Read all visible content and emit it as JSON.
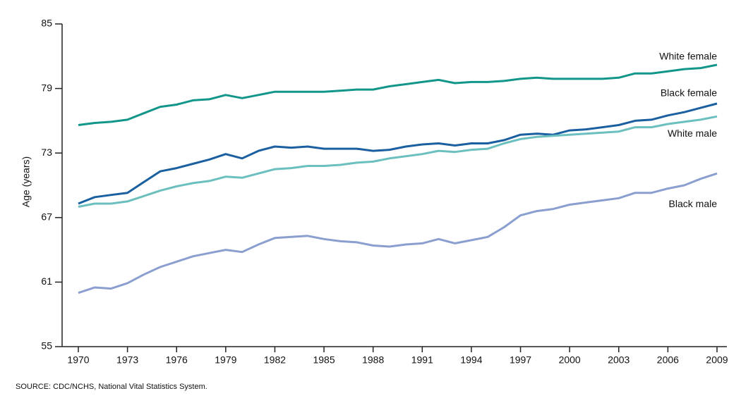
{
  "chart_data": {
    "type": "line",
    "y_label": "Age (years)",
    "source": "SOURCE: CDC/NCHS, National Vital Statistics System.",
    "x": [
      1970,
      1971,
      1972,
      1973,
      1974,
      1975,
      1976,
      1977,
      1978,
      1979,
      1980,
      1981,
      1982,
      1983,
      1984,
      1985,
      1986,
      1987,
      1988,
      1989,
      1990,
      1991,
      1992,
      1993,
      1994,
      1995,
      1996,
      1997,
      1998,
      1999,
      2000,
      2001,
      2002,
      2003,
      2004,
      2005,
      2006,
      2007,
      2008,
      2009
    ],
    "xlim": [
      1970,
      2009
    ],
    "xticks": [
      1970,
      1973,
      1976,
      1979,
      1982,
      1985,
      1988,
      1991,
      1994,
      1997,
      2000,
      2003,
      2006,
      2009
    ],
    "ylim": [
      55,
      85
    ],
    "yticks": [
      55,
      61,
      67,
      73,
      79,
      85
    ],
    "grid": false,
    "series": [
      {
        "name": "White female",
        "color": "#13968a",
        "values": [
          75.6,
          75.8,
          75.9,
          76.1,
          76.7,
          77.3,
          77.5,
          77.9,
          78.0,
          78.4,
          78.1,
          78.4,
          78.7,
          78.7,
          78.7,
          78.7,
          78.8,
          78.9,
          78.9,
          79.2,
          79.4,
          79.6,
          79.8,
          79.5,
          79.6,
          79.6,
          79.7,
          79.9,
          80.0,
          79.9,
          79.9,
          79.9,
          79.9,
          80.0,
          80.4,
          80.4,
          80.6,
          80.8,
          80.9,
          81.2
        ]
      },
      {
        "name": "Black female",
        "color": "#1a5fa0",
        "values": [
          68.3,
          68.9,
          69.1,
          69.3,
          70.3,
          71.3,
          71.6,
          72.0,
          72.4,
          72.9,
          72.5,
          73.2,
          73.6,
          73.5,
          73.6,
          73.4,
          73.4,
          73.4,
          73.2,
          73.3,
          73.6,
          73.8,
          73.9,
          73.7,
          73.9,
          73.9,
          74.2,
          74.7,
          74.8,
          74.7,
          75.1,
          75.2,
          75.4,
          75.6,
          76.0,
          76.1,
          76.5,
          76.8,
          77.2,
          77.6
        ]
      },
      {
        "name": "White male",
        "color": "#6cbfbf",
        "values": [
          68.0,
          68.3,
          68.3,
          68.5,
          69.0,
          69.5,
          69.9,
          70.2,
          70.4,
          70.8,
          70.7,
          71.1,
          71.5,
          71.6,
          71.8,
          71.8,
          71.9,
          72.1,
          72.2,
          72.5,
          72.7,
          72.9,
          73.2,
          73.1,
          73.3,
          73.4,
          73.9,
          74.3,
          74.5,
          74.6,
          74.7,
          74.8,
          74.9,
          75.0,
          75.4,
          75.4,
          75.7,
          75.9,
          76.1,
          76.4
        ]
      },
      {
        "name": "Black male",
        "color": "#8a9fcf",
        "values": [
          60.0,
          60.5,
          60.4,
          60.9,
          61.7,
          62.4,
          62.9,
          63.4,
          63.7,
          64.0,
          63.8,
          64.5,
          65.1,
          65.2,
          65.3,
          65.0,
          64.8,
          64.7,
          64.4,
          64.3,
          64.5,
          64.6,
          65.0,
          64.6,
          64.9,
          65.2,
          66.1,
          67.2,
          67.6,
          67.8,
          68.2,
          68.4,
          68.6,
          68.8,
          69.3,
          69.3,
          69.7,
          70.0,
          70.6,
          71.1
        ]
      }
    ]
  }
}
